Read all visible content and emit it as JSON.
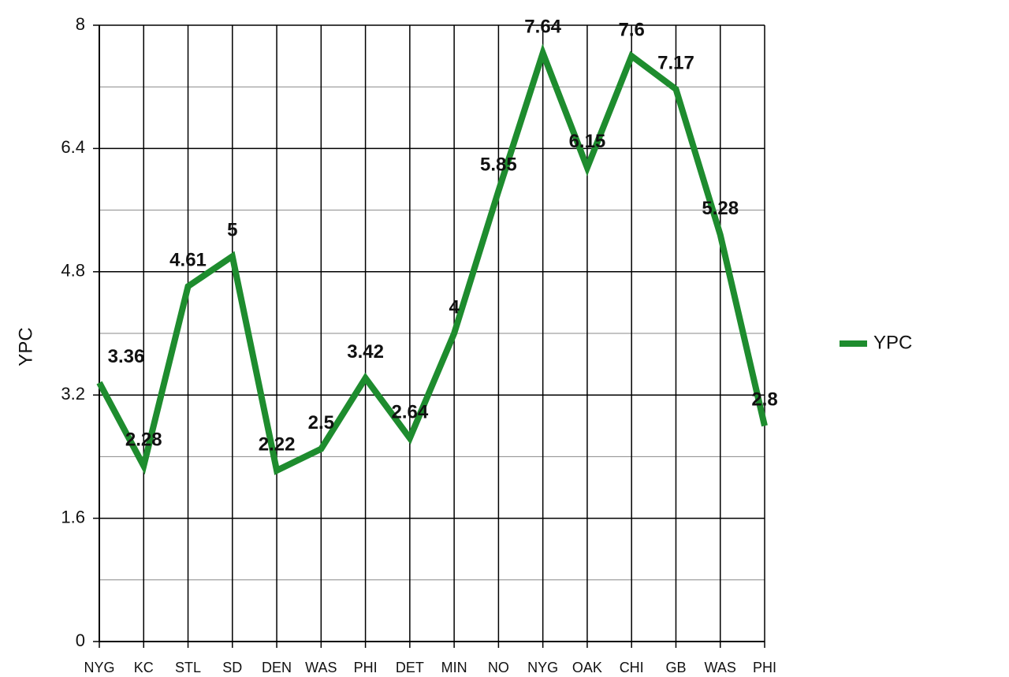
{
  "chart_data": {
    "type": "line",
    "y_label": "YPC",
    "categories": [
      "NYG",
      "KC",
      "STL",
      "SD",
      "DEN",
      "WAS",
      "PHI",
      "DET",
      "MIN",
      "NO",
      "NYG",
      "OAK",
      "CHI",
      "GB",
      "WAS",
      "PHI"
    ],
    "series": [
      {
        "name": "YPC",
        "color": "#1e8c2e",
        "values": [
          3.36,
          2.28,
          4.61,
          5,
          2.22,
          2.5,
          3.42,
          2.64,
          4,
          5.85,
          7.64,
          6.15,
          7.6,
          7.17,
          5.28,
          2.8
        ]
      }
    ],
    "ylim": [
      0,
      8
    ],
    "yticks": [
      0,
      1.6,
      3.2,
      4.8,
      6.4,
      8
    ],
    "grid": true,
    "legend": "right",
    "data_labels": true
  }
}
